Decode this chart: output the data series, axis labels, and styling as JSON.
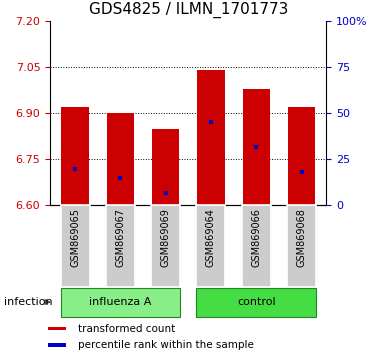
{
  "title": "GDS4825 / ILMN_1701773",
  "categories": [
    "GSM869065",
    "GSM869067",
    "GSM869069",
    "GSM869064",
    "GSM869066",
    "GSM869068"
  ],
  "bar_tops": [
    6.92,
    6.9,
    6.85,
    7.04,
    6.98,
    6.92
  ],
  "bar_bottom": 6.6,
  "blue_positions": [
    6.72,
    6.69,
    6.64,
    6.87,
    6.79,
    6.71
  ],
  "ylim_left": [
    6.6,
    7.2
  ],
  "yticks_left": [
    6.6,
    6.75,
    6.9,
    7.05,
    7.2
  ],
  "ylim_right": [
    0,
    100
  ],
  "yticks_right": [
    0,
    25,
    50,
    75,
    100
  ],
  "ytick_labels_right": [
    "0",
    "25",
    "50",
    "75",
    "100%"
  ],
  "grid_lines": [
    6.75,
    6.9,
    7.05
  ],
  "bar_color": "#cc0000",
  "blue_color": "#0000cc",
  "groups": [
    {
      "label": "influenza A",
      "indices": [
        0,
        1,
        2
      ],
      "color": "#88ee88"
    },
    {
      "label": "control",
      "indices": [
        3,
        4,
        5
      ],
      "color": "#44dd44"
    }
  ],
  "group_label_prefix": "infection",
  "tick_color_left": "#cc0000",
  "tick_color_right": "#0000cc",
  "title_fontsize": 11,
  "bar_width": 0.6,
  "label_box_color": "#cccccc",
  "label_box_edgecolor": "#ffffff",
  "legend_items": [
    {
      "label": "transformed count",
      "color": "#cc0000"
    },
    {
      "label": "percentile rank within the sample",
      "color": "#0000cc"
    }
  ]
}
